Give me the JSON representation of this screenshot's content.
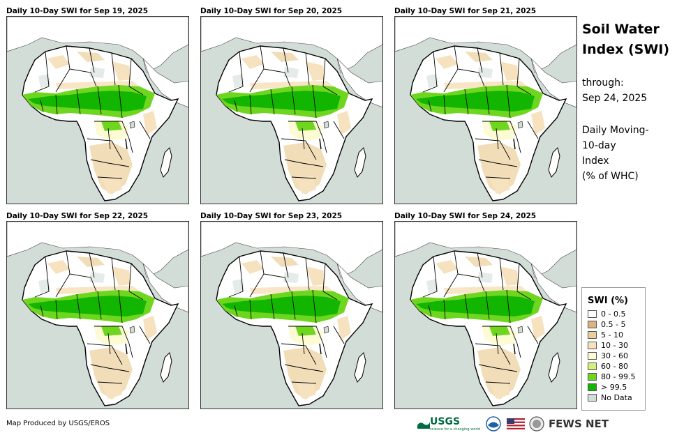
{
  "panels": [
    {
      "title": "Daily 10-Day SWI for Sep 19, 2025"
    },
    {
      "title": "Daily 10-Day SWI for Sep 20, 2025"
    },
    {
      "title": "Daily 10-Day SWI for Sep 21, 2025"
    },
    {
      "title": "Daily 10-Day SWI for Sep 22, 2025"
    },
    {
      "title": "Daily 10-Day SWI for Sep 23, 2025"
    },
    {
      "title": "Daily 10-Day SWI for Sep 24, 2025"
    }
  ],
  "side": {
    "title_line1": "Soil Water",
    "title_line2": "Index (SWI)",
    "through_label": "through:",
    "through_date": "Sep 24, 2025",
    "desc1": "Daily Moving-",
    "desc2": "10-day",
    "desc3": "Index",
    "desc4": "(% of WHC)"
  },
  "legend": {
    "title": "SWI (%)",
    "items": [
      {
        "label": "0 - 0.5",
        "color": "#ffffff"
      },
      {
        "label": "0.5 - 5",
        "color": "#d8b47e"
      },
      {
        "label": "5 - 10",
        "color": "#ebcf9a"
      },
      {
        "label": "10 - 30",
        "color": "#f7e2bf"
      },
      {
        "label": "30 - 60",
        "color": "#fdfbd3"
      },
      {
        "label": "60 - 80",
        "color": "#d5f07c"
      },
      {
        "label": "80 - 99.5",
        "color": "#6fd620"
      },
      {
        "label": "> 99.5",
        "color": "#12b600"
      },
      {
        "label": "No Data",
        "color": "#d3ddd8"
      }
    ]
  },
  "footer": {
    "credit": "Map Produced by USGS/EROS",
    "usgs_label": "USGS",
    "usgs_tagline": "science for a changing world",
    "fews_label": "FEWS NET"
  },
  "colors": {
    "ocean": "#d3ddd8",
    "land_dry": "#ffffff",
    "tan": "#ebcf9a",
    "light_tan": "#f7e2bf",
    "green": "#12b600",
    "light_green": "#6fd620",
    "border": "#000000"
  }
}
